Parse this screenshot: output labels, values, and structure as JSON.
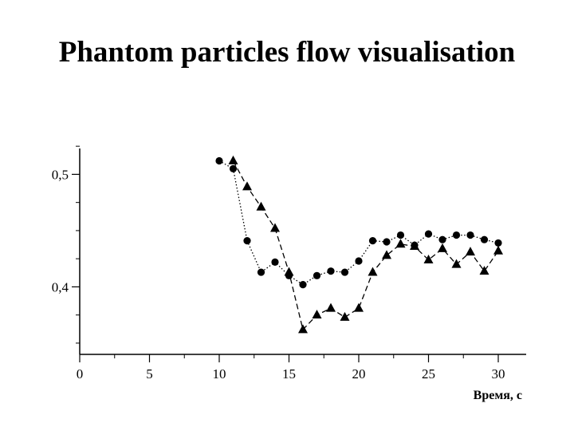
{
  "title": "Phantom particles flow visualisation",
  "chart_data": {
    "type": "line",
    "xlabel": "Время, с",
    "ylabel": "",
    "xlim": [
      0,
      32
    ],
    "ylim": [
      0.34,
      0.523
    ],
    "xticks": [
      0,
      5,
      10,
      15,
      20,
      25,
      30
    ],
    "xtick_labels": [
      "0",
      "5",
      "10",
      "15",
      "20",
      "25",
      "30"
    ],
    "yticks": [
      0.4,
      0.5
    ],
    "ytick_labels": [
      "0,4",
      "0,5"
    ],
    "grid": false,
    "series": [
      {
        "marker": "circle",
        "line_style": "dotted",
        "x": [
          10,
          11,
          12,
          13,
          14,
          15,
          16,
          17,
          18,
          19,
          20,
          21,
          22,
          23,
          24,
          25,
          26,
          27,
          28,
          29,
          30
        ],
        "y": [
          0.512,
          0.505,
          0.441,
          0.413,
          0.422,
          0.41,
          0.402,
          0.41,
          0.414,
          0.413,
          0.423,
          0.441,
          0.44,
          0.446,
          0.437,
          0.447,
          0.442,
          0.446,
          0.446,
          0.442,
          0.439
        ]
      },
      {
        "marker": "triangle",
        "line_style": "dashed",
        "x": [
          11,
          12,
          13,
          14,
          15,
          16,
          17,
          18,
          19,
          20,
          21,
          22,
          23,
          24,
          25,
          26,
          27,
          28,
          29,
          30
        ],
        "y": [
          0.512,
          0.489,
          0.471,
          0.452,
          0.413,
          0.362,
          0.375,
          0.381,
          0.373,
          0.381,
          0.413,
          0.428,
          0.438,
          0.436,
          0.424,
          0.434,
          0.42,
          0.431,
          0.414,
          0.432
        ]
      }
    ]
  }
}
